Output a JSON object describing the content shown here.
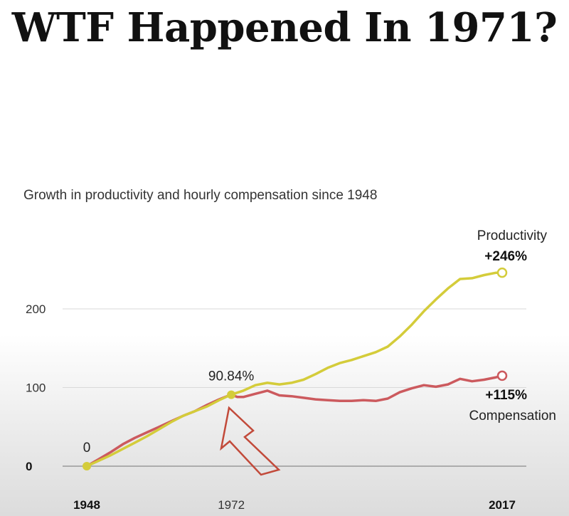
{
  "headline": "WTF Happened In 1971?",
  "chart_data": {
    "type": "line",
    "title": "Growth in productivity and hourly compensation since 1948",
    "xlabel": "",
    "ylabel": "",
    "xlim": [
      1948,
      2017
    ],
    "ylim": [
      0,
      250
    ],
    "x_ticks": [
      "1948",
      "1972",
      "2017"
    ],
    "y_ticks": [
      "0",
      "100",
      "200"
    ],
    "grid": true,
    "colors": {
      "productivity": "#d4cc3a",
      "compensation": "#cc5a5e",
      "arrow": "#c24a3a",
      "grid": "#d9d9d9"
    },
    "series": [
      {
        "name": "Productivity",
        "end_label": "+246%",
        "x": [
          1948,
          1950,
          1952,
          1954,
          1956,
          1958,
          1960,
          1962,
          1964,
          1966,
          1968,
          1970,
          1972,
          1974,
          1976,
          1978,
          1980,
          1982,
          1984,
          1986,
          1988,
          1990,
          1992,
          1994,
          1996,
          1998,
          2000,
          2002,
          2004,
          2006,
          2008,
          2010,
          2012,
          2014,
          2016,
          2017
        ],
        "values": [
          0,
          7,
          14,
          22,
          30,
          38,
          47,
          56,
          64,
          70,
          76,
          84,
          91,
          96,
          103,
          106,
          104,
          106,
          110,
          117,
          125,
          131,
          135,
          140,
          145,
          152,
          165,
          180,
          197,
          212,
          226,
          238,
          239,
          243,
          246,
          246
        ]
      },
      {
        "name": "Compensation",
        "end_label": "+115%",
        "x": [
          1948,
          1950,
          1952,
          1954,
          1956,
          1958,
          1960,
          1962,
          1964,
          1966,
          1968,
          1970,
          1972,
          1973,
          1974,
          1976,
          1978,
          1980,
          1982,
          1984,
          1986,
          1988,
          1990,
          1992,
          1994,
          1996,
          1998,
          2000,
          2002,
          2004,
          2006,
          2008,
          2010,
          2012,
          2014,
          2016,
          2017
        ],
        "values": [
          0,
          9,
          18,
          28,
          36,
          43,
          50,
          57,
          64,
          70,
          78,
          85,
          91,
          88,
          88,
          92,
          96,
          90,
          89,
          87,
          85,
          84,
          83,
          83,
          84,
          83,
          86,
          94,
          99,
          103,
          101,
          104,
          111,
          108,
          110,
          113,
          115
        ]
      }
    ],
    "annotations": [
      {
        "x": 1948,
        "y": 0,
        "text": "0"
      },
      {
        "x": 1972,
        "y": 90.84,
        "text": "90.84%"
      }
    ]
  }
}
